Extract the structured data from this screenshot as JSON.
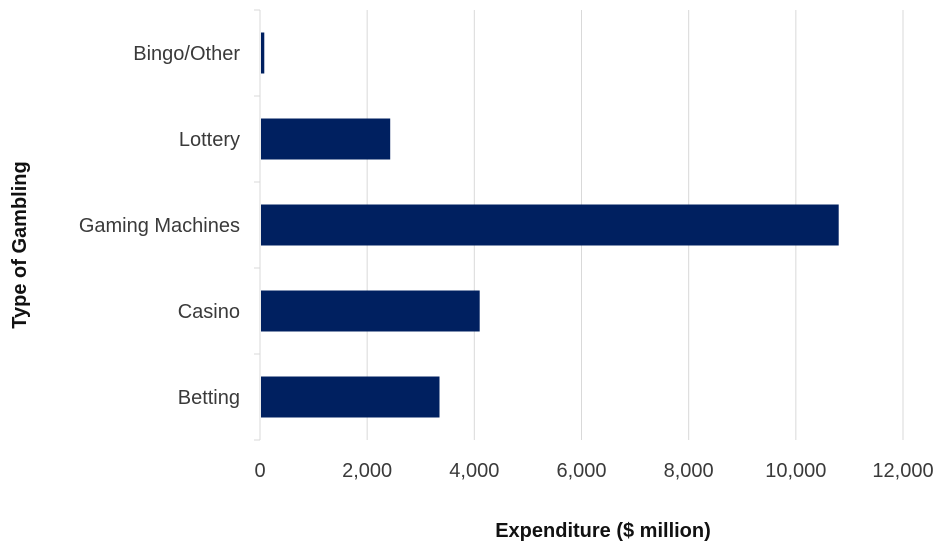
{
  "chart_data": {
    "type": "bar",
    "orientation": "horizontal",
    "title": "",
    "xlabel": "Expenditure ($ million)",
    "ylabel": "Type of Gambling",
    "categories": [
      "Betting",
      "Casino",
      "Gaming Machines",
      "Lottery",
      "Bingo/Other"
    ],
    "values": [
      3350,
      4100,
      10800,
      2430,
      80
    ],
    "xlim": [
      0,
      12000
    ],
    "x_ticks": [
      0,
      2000,
      4000,
      6000,
      8000,
      10000,
      12000
    ],
    "x_tick_labels": [
      "0",
      "2,000",
      "4,000",
      "6,000",
      "8,000",
      "10,000",
      "12,000"
    ],
    "grid": "vertical",
    "legend": "none",
    "bar_color": "#002060"
  }
}
